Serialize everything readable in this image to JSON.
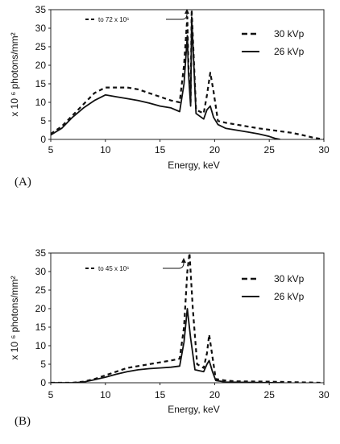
{
  "chart_data": [
    {
      "type": "line",
      "panel_label": "(A)",
      "xlabel": "Energy, keV",
      "ylabel": "x 10 ⁶ photons/mm²",
      "xlim": [
        5,
        30
      ],
      "ylim": [
        0,
        35
      ],
      "xticks": [
        "5",
        "10",
        "15",
        "20",
        "25",
        "30"
      ],
      "yticks": [
        "0",
        "5",
        "10",
        "15",
        "20",
        "25",
        "30",
        "35"
      ],
      "annotation": "to 72 x 10⁶",
      "legend_position": "top-right",
      "series": [
        {
          "name": "30 kVp",
          "style": "dashed",
          "x": [
            5,
            6,
            7,
            8,
            9,
            10,
            11,
            12,
            13,
            14,
            15,
            16,
            16.8,
            17.2,
            17.5,
            17.6,
            17.8,
            17.9,
            18.3,
            19.0,
            19.3,
            19.6,
            19.9,
            20.3,
            21,
            22,
            23,
            24,
            25,
            26,
            27,
            28,
            29,
            30
          ],
          "y": [
            1.5,
            3.5,
            6.5,
            9.5,
            12.5,
            14,
            14,
            14,
            13.5,
            12.5,
            11.5,
            10.5,
            10,
            20,
            33,
            20,
            10,
            35,
            8,
            7,
            12,
            18,
            13,
            5,
            4.5,
            4,
            3.5,
            3,
            2.6,
            2.2,
            1.8,
            1.2,
            0.5,
            0
          ]
        },
        {
          "name": "26 kVp",
          "style": "solid",
          "x": [
            5,
            6,
            7,
            8,
            9,
            10,
            11,
            12,
            13,
            14,
            15,
            16,
            16.8,
            17.2,
            17.5,
            17.6,
            17.8,
            17.9,
            18.3,
            19.0,
            19.3,
            19.6,
            19.9,
            20.3,
            21,
            22,
            23,
            24,
            25,
            25.5,
            26
          ],
          "y": [
            1.2,
            3,
            6,
            8.5,
            10.5,
            12,
            11.5,
            11,
            10.5,
            9.8,
            9,
            8.5,
            7.5,
            15,
            28,
            18,
            9,
            33,
            7,
            5.5,
            8,
            9,
            6,
            4,
            3,
            2.5,
            2,
            1.5,
            0.8,
            0.3,
            0
          ]
        }
      ]
    },
    {
      "type": "line",
      "panel_label": "(B)",
      "xlabel": "Energy, keV",
      "ylabel": "x 10 ⁶ photons/mm²",
      "xlim": [
        5,
        30
      ],
      "ylim": [
        0,
        35
      ],
      "xticks": [
        "5",
        "10",
        "15",
        "20",
        "25",
        "30"
      ],
      "yticks": [
        "0",
        "5",
        "10",
        "15",
        "20",
        "25",
        "30",
        "35"
      ],
      "annotation": "to 45 x 10⁶",
      "legend_position": "top-right",
      "series": [
        {
          "name": "30 kVp",
          "style": "dashed",
          "x": [
            5,
            7,
            8,
            9,
            10,
            11,
            12,
            13,
            14,
            15,
            16,
            16.8,
            17.2,
            17.5,
            17.7,
            18.0,
            18.4,
            19.0,
            19.3,
            19.5,
            19.8,
            20.1,
            21,
            22,
            25,
            28,
            30
          ],
          "y": [
            0,
            0,
            0.3,
            1,
            2,
            3,
            4,
            4.5,
            5,
            5.5,
            6,
            6.5,
            15,
            30,
            35,
            20,
            5,
            4,
            8,
            13,
            7,
            1,
            0.6,
            0.4,
            0.3,
            0.1,
            0
          ]
        },
        {
          "name": "26 kVp",
          "style": "solid",
          "x": [
            5,
            7,
            8,
            9,
            10,
            11,
            12,
            13,
            14,
            15,
            16,
            16.8,
            17.2,
            17.5,
            17.8,
            18.2,
            19.0,
            19.3,
            19.5,
            19.8,
            20.1,
            21,
            23,
            26
          ],
          "y": [
            0,
            0,
            0.2,
            0.8,
            1.5,
            2.3,
            3,
            3.5,
            3.8,
            4,
            4.2,
            4.5,
            11,
            20,
            12,
            3.5,
            3,
            5,
            6,
            3,
            0.6,
            0.2,
            0.1,
            0
          ]
        }
      ]
    }
  ]
}
